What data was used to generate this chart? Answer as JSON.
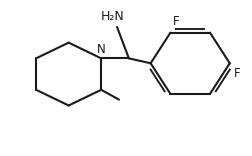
{
  "bg_color": "#ffffff",
  "line_color": "#1a1a1a",
  "line_width": 1.5,
  "font_size": 8.5,
  "figsize": [
    2.53,
    1.56
  ],
  "dpi": 100,
  "N_label": "N",
  "H2N_label": "H₂N",
  "F1_label": "F",
  "F2_label": "F"
}
